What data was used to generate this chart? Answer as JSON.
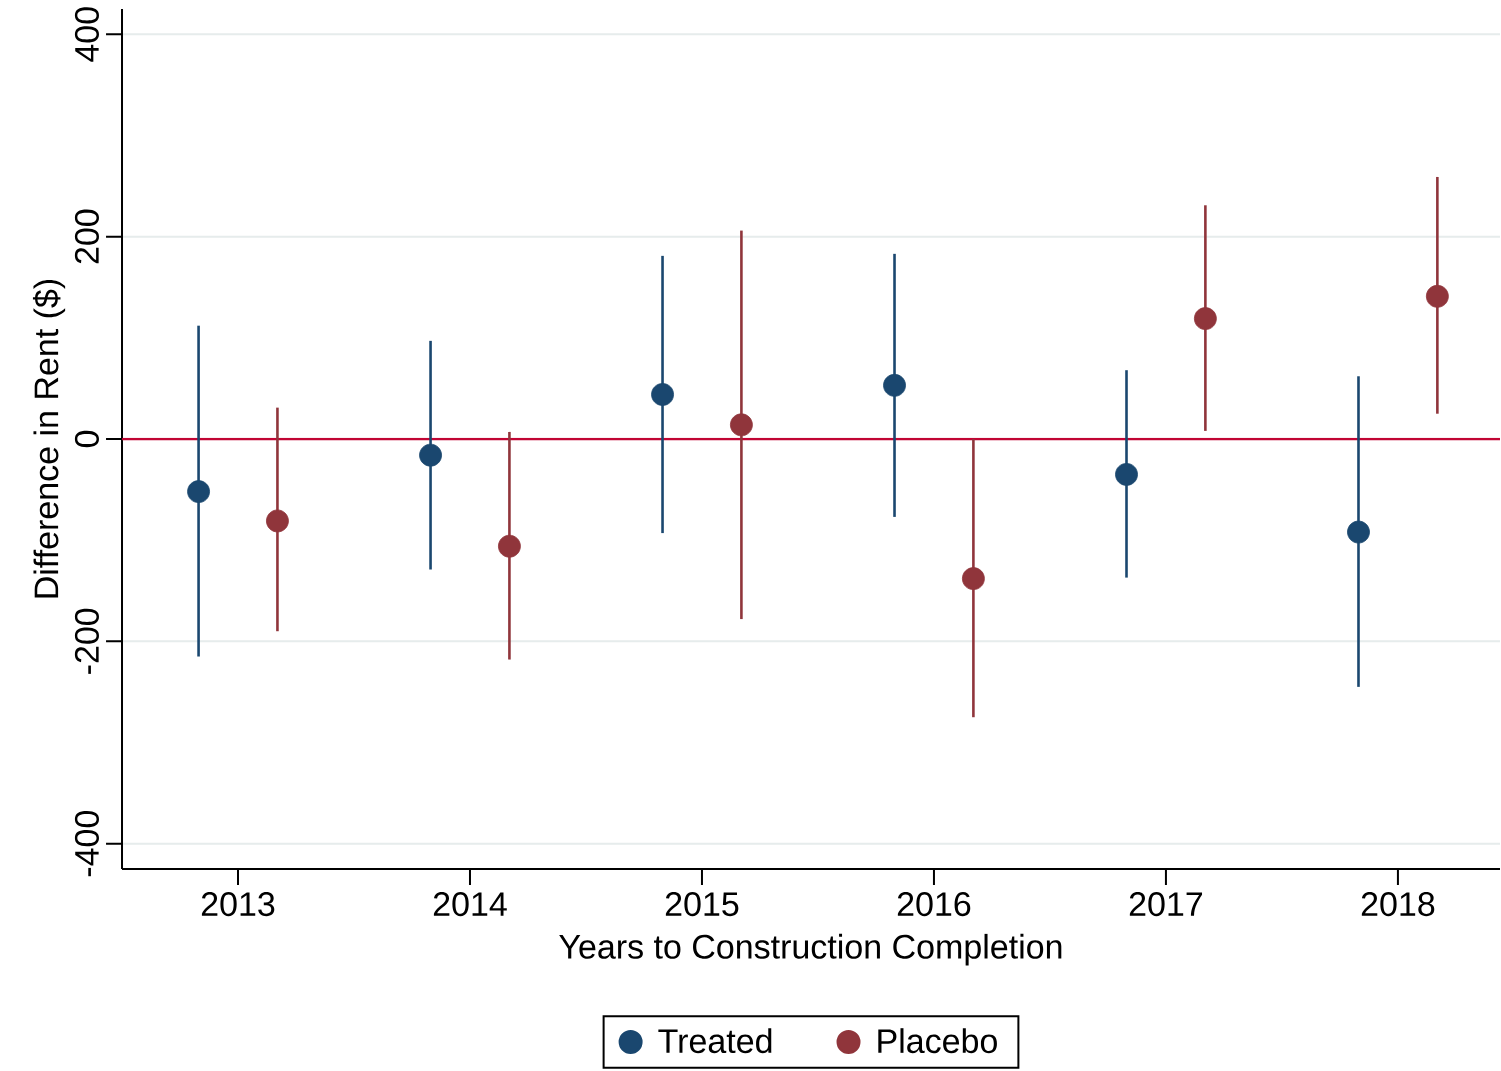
{
  "chart_data": {
    "type": "scatter",
    "xlabel": "Years to Construction Completion",
    "ylabel": "Difference in Rent ($)",
    "xlim": [
      2012.5,
      2018.44
    ],
    "xticks": [
      2013,
      2014,
      2015,
      2016,
      2017,
      2018
    ],
    "ylim": [
      -425,
      425
    ],
    "yticks": [
      -400,
      -200,
      0,
      200,
      400
    ],
    "grid": "y",
    "legend": "bottom",
    "ref_lines": [
      {
        "axis": "y",
        "value": 0,
        "color": "#c10534"
      }
    ],
    "series": [
      {
        "name": "Treated",
        "color": "#1a476f",
        "x": [
          2012.83,
          2013.83,
          2014.83,
          2015.83,
          2016.83,
          2017.83
        ],
        "values": [
          -52,
          -16,
          44,
          53,
          -35,
          -92
        ],
        "errors": [
          [
            -215,
            112
          ],
          [
            -129,
            97
          ],
          [
            -93,
            181
          ],
          [
            -77,
            183
          ],
          [
            -137,
            68
          ],
          [
            -245,
            62
          ]
        ]
      },
      {
        "name": "Placebo",
        "color": "#90353b",
        "x": [
          2013.17,
          2014.17,
          2015.17,
          2016.17,
          2017.17,
          2018.17
        ],
        "values": [
          -81,
          -106,
          14,
          -138,
          119,
          141
        ],
        "errors": [
          [
            -190,
            31
          ],
          [
            -218,
            7
          ],
          [
            -178,
            206
          ],
          [
            -275,
            0
          ],
          [
            8,
            231
          ],
          [
            25,
            259
          ]
        ]
      }
    ]
  }
}
